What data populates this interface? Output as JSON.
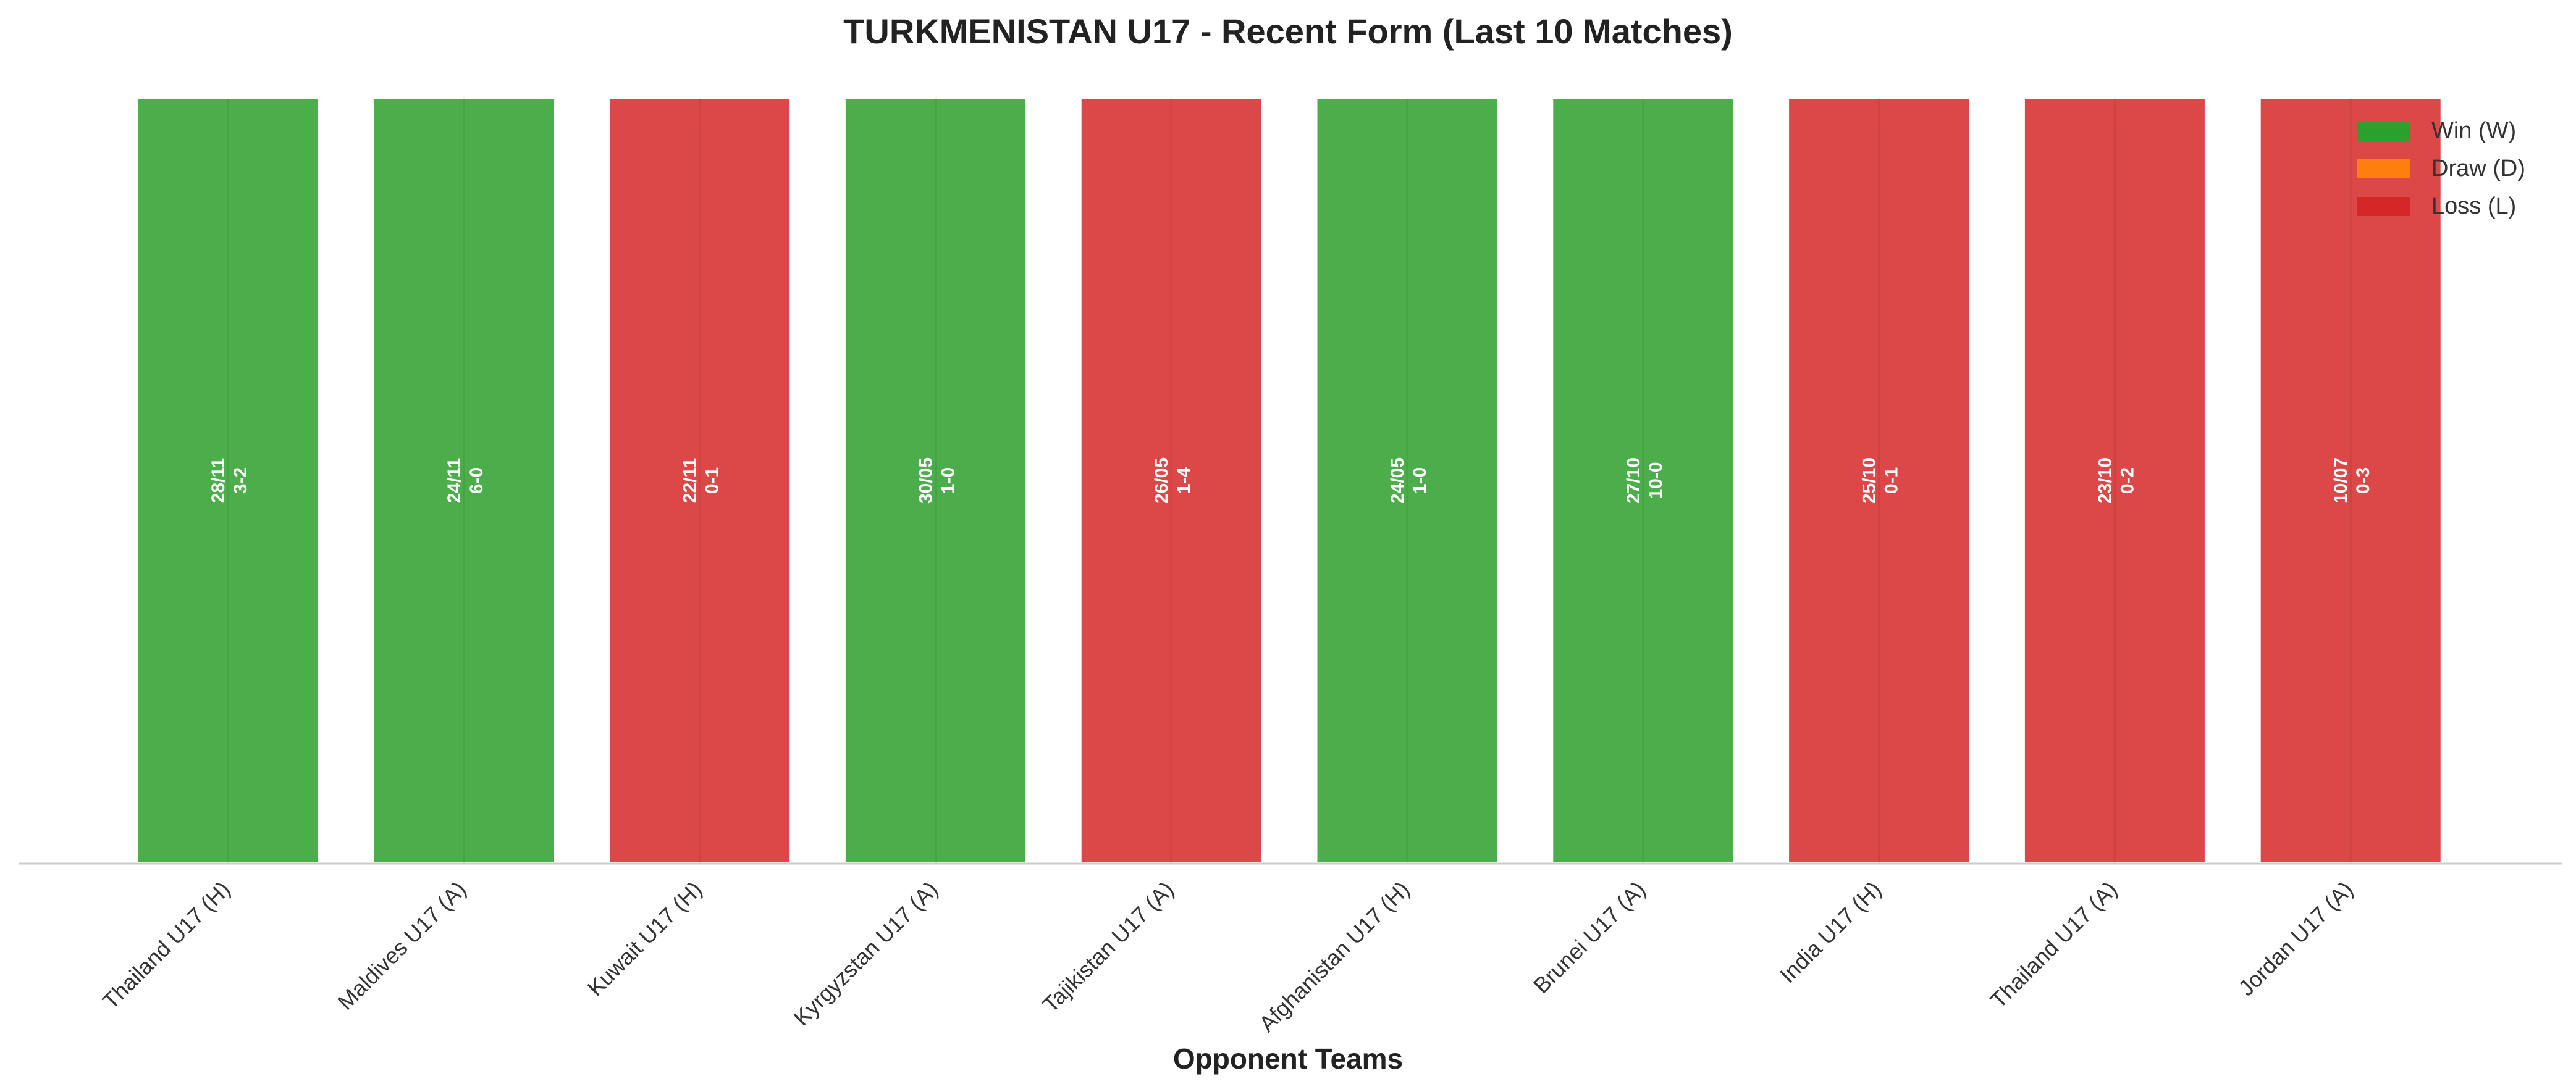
{
  "chart_data": {
    "type": "bar",
    "title": "TURKMENISTAN U17 - Recent Form (Last 10 Matches)",
    "xlabel": "Opponent Teams",
    "ylabel": "",
    "ylim": [
      0,
      1
    ],
    "grid": false,
    "legend_position": "top-right",
    "categories": [
      "Thailand U17 (H)",
      "Maldives U17 (A)",
      "Kuwait U17 (H)",
      "Kyrgyzstan U17 (A)",
      "Tajikistan U17 (A)",
      "Afghanistan U17 (H)",
      "Brunei U17 (A)",
      "India U17 (H)",
      "Thailand U17 (A)",
      "Jordan U17 (A)"
    ],
    "values": [
      1,
      1,
      1,
      1,
      1,
      1,
      1,
      1,
      1,
      1
    ],
    "results": [
      "W",
      "W",
      "L",
      "W",
      "L",
      "W",
      "W",
      "L",
      "L",
      "L"
    ],
    "dates": [
      "28/11",
      "24/11",
      "22/11",
      "30/05",
      "26/05",
      "24/05",
      "27/10",
      "25/10",
      "23/10",
      "10/07"
    ],
    "scores": [
      "3-2",
      "6-0",
      "0-1",
      "1-0",
      "1-4",
      "1-0",
      "10-0",
      "0-1",
      "0-2",
      "0-3"
    ],
    "legend": [
      {
        "key": "W",
        "label": "Win (W)",
        "color": "#2ca02c"
      },
      {
        "key": "D",
        "label": "Draw (D)",
        "color": "#ff7f0e"
      },
      {
        "key": "L",
        "label": "Loss (L)",
        "color": "#d62728"
      }
    ]
  }
}
